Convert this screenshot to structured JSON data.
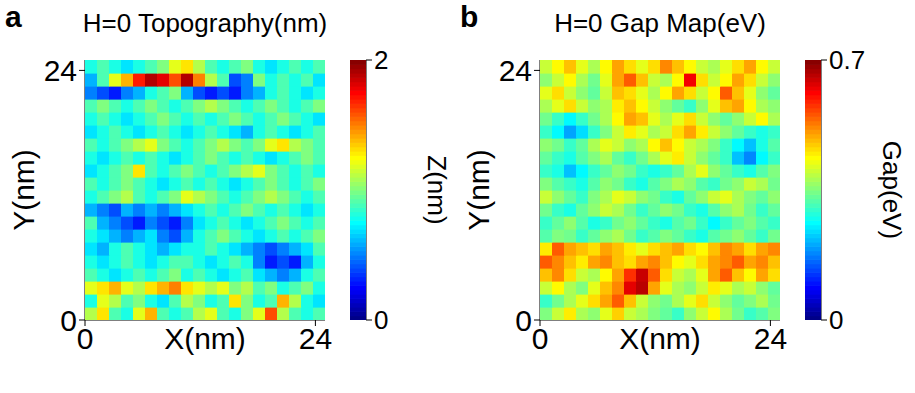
{
  "chart_data": [
    {
      "type": "heatmap",
      "panel_label": "a",
      "title": "H=0 Topography(nm)",
      "x_label": "X(nm)",
      "y_label": "Y(nm)",
      "xlim": [
        0,
        25
      ],
      "ylim": [
        0,
        25
      ],
      "xticks": [
        0,
        24
      ],
      "yticks": [
        0,
        24
      ],
      "cells": [
        [
          1.1,
          1.3,
          0.9,
          0.8,
          1.2,
          1.4,
          0.9,
          0.8,
          0.9,
          1.1,
          1.2,
          0.9,
          0.8,
          1.0,
          1.2,
          1.6,
          1.1,
          0.9,
          0.8,
          0.9
        ],
        [
          0.8,
          1.2,
          1.1,
          0.9,
          1.0,
          0.8,
          0.7,
          0.9,
          1.1,
          1.0,
          0.8,
          0.9,
          1.3,
          1.0,
          0.8,
          0.9,
          1.4,
          1.1,
          0.8,
          0.7
        ],
        [
          1.2,
          1.3,
          1.4,
          1.2,
          1.1,
          1.3,
          1.4,
          1.5,
          1.3,
          1.2,
          1.1,
          1.2,
          1.0,
          1.1,
          0.9,
          1.0,
          0.8,
          0.9,
          1.0,
          0.8
        ],
        [
          0.9,
          0.8,
          0.7,
          0.8,
          0.9,
          0.8,
          0.9,
          1.0,
          0.8,
          0.9,
          0.8,
          0.7,
          0.8,
          0.9,
          0.7,
          0.6,
          0.5,
          0.6,
          0.8,
          0.9
        ],
        [
          0.8,
          0.7,
          0.8,
          0.9,
          0.8,
          0.7,
          0.8,
          0.9,
          0.9,
          0.8,
          0.7,
          0.8,
          0.9,
          0.8,
          0.5,
          0.3,
          0.4,
          0.3,
          0.6,
          0.8
        ],
        [
          0.7,
          0.6,
          0.8,
          0.9,
          0.8,
          0.7,
          0.6,
          0.7,
          0.8,
          0.8,
          0.9,
          0.8,
          0.7,
          0.6,
          0.5,
          0.4,
          0.5,
          0.6,
          0.7,
          0.9
        ],
        [
          0.8,
          0.7,
          0.6,
          0.5,
          0.6,
          0.7,
          0.5,
          0.4,
          0.6,
          0.8,
          0.9,
          1.0,
          0.9,
          0.8,
          0.7,
          0.8,
          0.9,
          0.8,
          0.9,
          1.0
        ],
        [
          0.9,
          0.6,
          0.5,
          0.4,
          0.3,
          0.5,
          0.4,
          0.3,
          0.5,
          0.7,
          0.8,
          0.9,
          0.8,
          0.7,
          0.8,
          0.9,
          1.0,
          0.9,
          0.8,
          0.9
        ],
        [
          0.6,
          0.5,
          0.4,
          0.6,
          0.5,
          0.6,
          0.5,
          0.6,
          0.7,
          0.8,
          0.9,
          0.8,
          0.9,
          1.0,
          0.9,
          0.8,
          0.9,
          0.8,
          0.7,
          0.8
        ],
        [
          0.8,
          0.9,
          1.0,
          1.1,
          0.9,
          0.8,
          0.9,
          1.0,
          1.2,
          1.1,
          1.0,
          0.9,
          0.8,
          0.9,
          1.0,
          1.1,
          1.0,
          0.9,
          0.8,
          0.9
        ],
        [
          0.9,
          0.8,
          0.9,
          1.0,
          0.9,
          0.8,
          0.7,
          0.8,
          0.9,
          0.8,
          0.9,
          0.8,
          0.7,
          0.8,
          0.9,
          1.0,
          0.9,
          0.8,
          0.9,
          1.0
        ],
        [
          0.7,
          0.8,
          0.9,
          1.0,
          1.3,
          0.9,
          0.8,
          0.9,
          1.0,
          0.9,
          0.8,
          0.9,
          1.0,
          1.1,
          1.2,
          1.0,
          0.9,
          0.8,
          0.9,
          0.8
        ],
        [
          0.8,
          0.7,
          0.8,
          0.9,
          0.8,
          0.9,
          0.8,
          0.7,
          0.8,
          0.9,
          1.0,
          0.9,
          0.8,
          0.9,
          0.8,
          0.7,
          0.8,
          0.9,
          1.0,
          0.9
        ],
        [
          0.9,
          0.8,
          0.9,
          1.0,
          1.1,
          1.2,
          1.0,
          0.9,
          0.8,
          0.9,
          1.0,
          1.1,
          1.0,
          0.9,
          1.0,
          1.2,
          1.3,
          1.1,
          1.0,
          0.9
        ],
        [
          0.7,
          0.8,
          0.9,
          0.8,
          0.7,
          0.8,
          0.9,
          0.8,
          0.7,
          0.8,
          0.9,
          0.8,
          0.7,
          0.6,
          0.8,
          0.9,
          0.8,
          0.7,
          0.8,
          0.9
        ],
        [
          0.8,
          0.9,
          0.8,
          0.7,
          0.8,
          0.9,
          1.0,
          0.9,
          0.8,
          0.9,
          0.8,
          0.9,
          1.0,
          0.9,
          0.8,
          0.9,
          1.0,
          0.9,
          0.8,
          0.7
        ],
        [
          0.9,
          1.0,
          0.9,
          0.8,
          0.9,
          1.0,
          0.9,
          0.8,
          0.9,
          1.0,
          1.1,
          1.0,
          0.9,
          0.8,
          0.9,
          1.0,
          0.9,
          0.8,
          0.9,
          1.0
        ],
        [
          0.5,
          0.4,
          0.3,
          0.5,
          0.6,
          0.8,
          0.9,
          1.0,
          0.6,
          0.4,
          0.3,
          0.4,
          0.3,
          0.5,
          0.6,
          0.8,
          0.9,
          0.8,
          0.7,
          0.8
        ],
        [
          0.6,
          0.9,
          1.2,
          1.4,
          1.7,
          1.9,
          1.8,
          1.6,
          1.9,
          1.5,
          1.1,
          0.9,
          0.4,
          0.5,
          1.0,
          0.8,
          0.9,
          0.8,
          0.9,
          0.7
        ],
        [
          0.8,
          0.9,
          0.8,
          0.7,
          0.8,
          0.9,
          1.0,
          1.2,
          1.3,
          1.1,
          0.9,
          0.8,
          0.9,
          1.0,
          0.8,
          0.7,
          0.8,
          0.9,
          0.8,
          0.9
        ]
      ],
      "colorbar": {
        "range": [
          0,
          2
        ],
        "ticks": [
          0,
          2
        ],
        "label": "Z(nm)"
      }
    },
    {
      "type": "heatmap",
      "panel_label": "b",
      "title": "H=0 Gap Map(eV)",
      "x_label": "X(nm)",
      "y_label": "Y(nm)",
      "xlim": [
        0,
        25
      ],
      "ylim": [
        0,
        25
      ],
      "xticks": [
        0,
        24
      ],
      "yticks": [
        0,
        24
      ],
      "cells": [
        [
          0.35,
          0.4,
          0.45,
          0.38,
          0.36,
          0.42,
          0.47,
          0.4,
          0.38,
          0.35,
          0.33,
          0.3,
          0.36,
          0.4,
          0.44,
          0.38,
          0.34,
          0.3,
          0.32,
          0.35
        ],
        [
          0.3,
          0.34,
          0.38,
          0.42,
          0.46,
          0.5,
          0.55,
          0.48,
          0.4,
          0.36,
          0.34,
          0.38,
          0.42,
          0.46,
          0.4,
          0.36,
          0.33,
          0.35,
          0.38,
          0.34
        ],
        [
          0.4,
          0.44,
          0.38,
          0.35,
          0.42,
          0.48,
          0.52,
          0.63,
          0.66,
          0.5,
          0.42,
          0.38,
          0.36,
          0.4,
          0.45,
          0.42,
          0.38,
          0.4,
          0.36,
          0.33
        ],
        [
          0.48,
          0.52,
          0.46,
          0.4,
          0.38,
          0.44,
          0.5,
          0.58,
          0.65,
          0.55,
          0.46,
          0.4,
          0.38,
          0.42,
          0.5,
          0.55,
          0.48,
          0.44,
          0.5,
          0.46
        ],
        [
          0.55,
          0.52,
          0.48,
          0.45,
          0.5,
          0.52,
          0.48,
          0.46,
          0.5,
          0.52,
          0.48,
          0.44,
          0.42,
          0.46,
          0.5,
          0.52,
          0.55,
          0.5,
          0.52,
          0.48
        ],
        [
          0.45,
          0.55,
          0.5,
          0.48,
          0.46,
          0.5,
          0.48,
          0.45,
          0.42,
          0.46,
          0.48,
          0.5,
          0.46,
          0.44,
          0.48,
          0.52,
          0.5,
          0.46,
          0.5,
          0.52
        ],
        [
          0.32,
          0.35,
          0.34,
          0.3,
          0.33,
          0.36,
          0.38,
          0.34,
          0.3,
          0.32,
          0.35,
          0.33,
          0.3,
          0.28,
          0.32,
          0.34,
          0.36,
          0.33,
          0.3,
          0.34
        ],
        [
          0.3,
          0.33,
          0.36,
          0.32,
          0.28,
          0.3,
          0.34,
          0.36,
          0.33,
          0.3,
          0.28,
          0.32,
          0.34,
          0.3,
          0.26,
          0.3,
          0.33,
          0.35,
          0.32,
          0.3
        ],
        [
          0.34,
          0.3,
          0.28,
          0.33,
          0.36,
          0.4,
          0.38,
          0.34,
          0.3,
          0.33,
          0.36,
          0.34,
          0.3,
          0.28,
          0.32,
          0.36,
          0.38,
          0.34,
          0.3,
          0.33
        ],
        [
          0.4,
          0.36,
          0.33,
          0.3,
          0.35,
          0.38,
          0.42,
          0.4,
          0.36,
          0.34,
          0.3,
          0.28,
          0.33,
          0.36,
          0.4,
          0.42,
          0.38,
          0.35,
          0.33,
          0.36
        ],
        [
          0.35,
          0.32,
          0.3,
          0.28,
          0.32,
          0.36,
          0.34,
          0.3,
          0.28,
          0.32,
          0.35,
          0.38,
          0.36,
          0.32,
          0.3,
          0.34,
          0.36,
          0.4,
          0.38,
          0.34
        ],
        [
          0.3,
          0.28,
          0.22,
          0.26,
          0.3,
          0.33,
          0.36,
          0.34,
          0.3,
          0.28,
          0.3,
          0.33,
          0.38,
          0.42,
          0.36,
          0.33,
          0.3,
          0.28,
          0.32,
          0.35
        ],
        [
          0.33,
          0.3,
          0.28,
          0.32,
          0.35,
          0.38,
          0.33,
          0.3,
          0.34,
          0.38,
          0.42,
          0.45,
          0.4,
          0.36,
          0.33,
          0.3,
          0.22,
          0.18,
          0.26,
          0.3
        ],
        [
          0.36,
          0.34,
          0.3,
          0.33,
          0.38,
          0.42,
          0.4,
          0.36,
          0.38,
          0.44,
          0.48,
          0.44,
          0.4,
          0.38,
          0.35,
          0.3,
          0.26,
          0.22,
          0.28,
          0.32
        ],
        [
          0.3,
          0.26,
          0.2,
          0.24,
          0.3,
          0.35,
          0.4,
          0.45,
          0.42,
          0.38,
          0.4,
          0.46,
          0.5,
          0.45,
          0.4,
          0.36,
          0.33,
          0.3,
          0.28,
          0.3
        ],
        [
          0.34,
          0.3,
          0.26,
          0.3,
          0.34,
          0.38,
          0.44,
          0.5,
          0.48,
          0.42,
          0.38,
          0.42,
          0.46,
          0.4,
          0.36,
          0.33,
          0.36,
          0.4,
          0.44,
          0.38
        ],
        [
          0.38,
          0.42,
          0.46,
          0.4,
          0.36,
          0.38,
          0.45,
          0.48,
          0.44,
          0.4,
          0.36,
          0.33,
          0.3,
          0.36,
          0.42,
          0.48,
          0.5,
          0.44,
          0.38,
          0.36
        ],
        [
          0.42,
          0.46,
          0.4,
          0.36,
          0.33,
          0.4,
          0.48,
          0.46,
          0.42,
          0.38,
          0.44,
          0.5,
          0.46,
          0.4,
          0.44,
          0.55,
          0.48,
          0.42,
          0.36,
          0.33
        ],
        [
          0.36,
          0.4,
          0.44,
          0.38,
          0.34,
          0.42,
          0.5,
          0.55,
          0.48,
          0.4,
          0.38,
          0.44,
          0.62,
          0.46,
          0.4,
          0.44,
          0.5,
          0.46,
          0.4,
          0.36
        ],
        [
          0.4,
          0.44,
          0.48,
          0.42,
          0.38,
          0.44,
          0.5,
          0.46,
          0.42,
          0.46,
          0.52,
          0.48,
          0.44,
          0.4,
          0.38,
          0.42,
          0.46,
          0.5,
          0.44,
          0.4
        ]
      ],
      "colorbar": {
        "range": [
          0,
          0.7
        ],
        "ticks": [
          0,
          0.7
        ],
        "label": "Gap(eV)"
      }
    }
  ]
}
